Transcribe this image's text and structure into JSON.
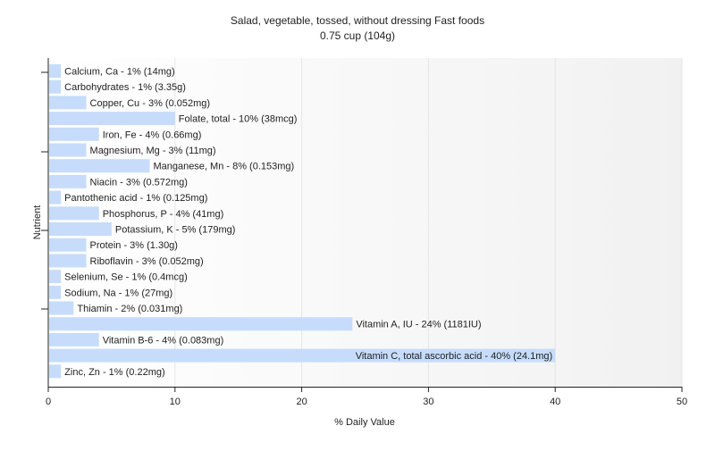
{
  "chart_data": {
    "type": "bar",
    "orientation": "horizontal",
    "title": "Salad, vegetable, tossed, without dressing Fast foods",
    "subtitle": "0.75 cup (104g)",
    "xlabel": "% Daily Value",
    "ylabel": "Nutrient",
    "xlim": [
      0,
      50
    ],
    "xticks": [
      0,
      10,
      20,
      30,
      40,
      50
    ],
    "grid": true,
    "bar_color": "#c6dcfa",
    "categories": [
      "Calcium, Ca",
      "Carbohydrates",
      "Copper, Cu",
      "Folate, total",
      "Iron, Fe",
      "Magnesium, Mg",
      "Manganese, Mn",
      "Niacin",
      "Pantothenic acid",
      "Phosphorus, P",
      "Potassium, K",
      "Protein",
      "Riboflavin",
      "Selenium, Se",
      "Sodium, Na",
      "Thiamin",
      "Vitamin A, IU",
      "Vitamin B-6",
      "Vitamin C, total ascorbic acid",
      "Zinc, Zn"
    ],
    "values": [
      1,
      1,
      3,
      10,
      4,
      3,
      8,
      3,
      1,
      4,
      5,
      3,
      3,
      1,
      1,
      2,
      24,
      4,
      40,
      1
    ],
    "labels": [
      "Calcium, Ca - 1% (14mg)",
      "Carbohydrates - 1% (3.35g)",
      "Copper, Cu - 3% (0.052mg)",
      "Folate, total - 10% (38mcg)",
      "Iron, Fe - 4% (0.66mg)",
      "Magnesium, Mg - 3% (11mg)",
      "Manganese, Mn - 8% (0.153mg)",
      "Niacin - 3% (0.572mg)",
      "Pantothenic acid - 1% (0.125mg)",
      "Phosphorus, P - 4% (41mg)",
      "Potassium, K - 5% (179mg)",
      "Protein - 3% (1.30g)",
      "Riboflavin - 3% (0.052mg)",
      "Selenium, Se - 1% (0.4mcg)",
      "Sodium, Na - 1% (27mg)",
      "Thiamin - 2% (0.031mg)",
      "Vitamin A, IU - 24% (1181IU)",
      "Vitamin B-6 - 4% (0.083mg)",
      "Vitamin C, total ascorbic acid - 40% (24.1mg)",
      "Zinc, Zn - 1% (0.22mg)"
    ]
  }
}
